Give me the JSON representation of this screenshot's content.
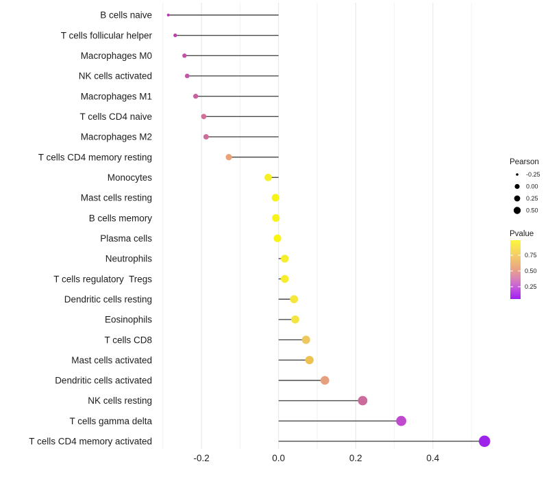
{
  "figure": {
    "background": "#ffffff",
    "title": ""
  },
  "chart_data": {
    "type": "scatter",
    "subtype": "lollipop",
    "title": "",
    "xlabel": "",
    "ylabel": "",
    "xlim": [
      -0.305,
      0.565
    ],
    "grid": true,
    "x_ticks": [
      -0.2,
      0.0,
      0.2,
      0.4
    ],
    "x_tick_labels": [
      "-0.2",
      "0.0",
      "0.2",
      "0.4"
    ],
    "x_minor_grid": [
      -0.3,
      -0.1,
      0.1,
      0.3,
      0.5
    ],
    "categories": [
      "B cells naive",
      "T cells follicular helper",
      "Macrophages M0",
      "NK cells activated",
      "Macrophages M1",
      "T cells CD4 naive",
      "Macrophages M2",
      "T cells CD4 memory resting",
      "Monocytes",
      "Mast cells resting",
      "B cells memory",
      "Plasma cells",
      "Neutrophils",
      "T cells regulatory  Tregs",
      "Dendritic cells resting",
      "Eosinophils",
      "T cells CD8",
      "Mast cells activated",
      "Dendritic cells activated",
      "NK cells resting",
      "T cells gamma delta",
      "T cells CD4 memory activated"
    ],
    "series": [
      {
        "name": "Pearson",
        "values": [
          -0.286,
          -0.268,
          -0.244,
          -0.237,
          -0.215,
          -0.194,
          -0.188,
          -0.129,
          -0.027,
          -0.008,
          -0.007,
          -0.003,
          0.016,
          0.016,
          0.04,
          0.043,
          0.071,
          0.08,
          0.12,
          0.218,
          0.318,
          0.534
        ]
      }
    ],
    "points": [
      {
        "category": "B cells naive",
        "pearson": -0.286,
        "pvalue_est": 0.32,
        "color": "#b93aac"
      },
      {
        "category": "T cells follicular helper",
        "pearson": -0.268,
        "pvalue_est": 0.34,
        "color": "#bc42ae"
      },
      {
        "category": "Macrophages M0",
        "pearson": -0.244,
        "pvalue_est": 0.38,
        "color": "#c350a9"
      },
      {
        "category": "NK cells activated",
        "pearson": -0.237,
        "pvalue_est": 0.4,
        "color": "#c455a6"
      },
      {
        "category": "Macrophages M1",
        "pearson": -0.215,
        "pvalue_est": 0.44,
        "color": "#ca619f"
      },
      {
        "category": "T cells CD4 naive",
        "pearson": -0.194,
        "pvalue_est": 0.47,
        "color": "#d0719a"
      },
      {
        "category": "Macrophages M2",
        "pearson": -0.188,
        "pvalue_est": 0.46,
        "color": "#ce6c9b"
      },
      {
        "category": "T cells CD4 memory resting",
        "pearson": -0.129,
        "pvalue_est": 0.62,
        "color": "#eba275"
      },
      {
        "category": "Monocytes",
        "pearson": -0.027,
        "pvalue_est": 0.93,
        "color": "#f6ef25"
      },
      {
        "category": "Mast cells resting",
        "pearson": -0.008,
        "pvalue_est": 0.95,
        "color": "#f7f218"
      },
      {
        "category": "B cells memory",
        "pearson": -0.007,
        "pvalue_est": 0.95,
        "color": "#f7f218"
      },
      {
        "category": "Plasma cells",
        "pearson": -0.003,
        "pvalue_est": 0.96,
        "color": "#f8f414"
      },
      {
        "category": "Neutrophils",
        "pearson": 0.016,
        "pvalue_est": 0.93,
        "color": "#f6ee2c"
      },
      {
        "category": "T cells regulatory  Tregs",
        "pearson": 0.016,
        "pvalue_est": 0.93,
        "color": "#f6ee2c"
      },
      {
        "category": "Dendritic cells resting",
        "pearson": 0.04,
        "pvalue_est": 0.9,
        "color": "#f5e63b"
      },
      {
        "category": "Eosinophils",
        "pearson": 0.043,
        "pvalue_est": 0.89,
        "color": "#f4e440"
      },
      {
        "category": "T cells CD8",
        "pearson": 0.071,
        "pvalue_est": 0.8,
        "color": "#eec75e"
      },
      {
        "category": "Mast cells activated",
        "pearson": 0.08,
        "pvalue_est": 0.78,
        "color": "#edc253"
      },
      {
        "category": "Dendritic cells activated",
        "pearson": 0.12,
        "pvalue_est": 0.58,
        "color": "#e5a07e"
      },
      {
        "category": "NK cells resting",
        "pearson": 0.218,
        "pvalue_est": 0.45,
        "color": "#cc6b9e"
      },
      {
        "category": "T cells gamma delta",
        "pearson": 0.318,
        "pvalue_est": 0.25,
        "color": "#bf4ad0"
      },
      {
        "category": "T cells CD4 memory activated",
        "pearson": 0.534,
        "pvalue_est": 0.09,
        "color": "#9d24ea"
      }
    ],
    "legend_position": "right"
  },
  "legend_pearson": {
    "title": "Pearson",
    "dot_color": "#000000",
    "items": [
      {
        "label": "-0.25",
        "size": 1.8
      },
      {
        "label": "0.00",
        "size": 3.6
      },
      {
        "label": "0.25",
        "size": 4.4
      },
      {
        "label": "0.50",
        "size": 5.2
      }
    ]
  },
  "legend_pvalue": {
    "title": "Pvalue",
    "ticks": [
      "0.75",
      "0.50",
      "0.25"
    ],
    "gradient_top_value": 1.0,
    "gradient_bottom_value": 0.05,
    "gradient_colors": [
      "#fdf63c",
      "#f4cd68",
      "#e9a284",
      "#da86b4",
      "#c75fd8",
      "#a21df2"
    ],
    "gradient_stops_pct": [
      0,
      26,
      50,
      64,
      79,
      100
    ]
  },
  "colors": {
    "stem": "#4a4a4a",
    "grid_major": "#e4e4e4",
    "grid_minor": "#f2f2f2",
    "text": "#1c1c1c"
  }
}
